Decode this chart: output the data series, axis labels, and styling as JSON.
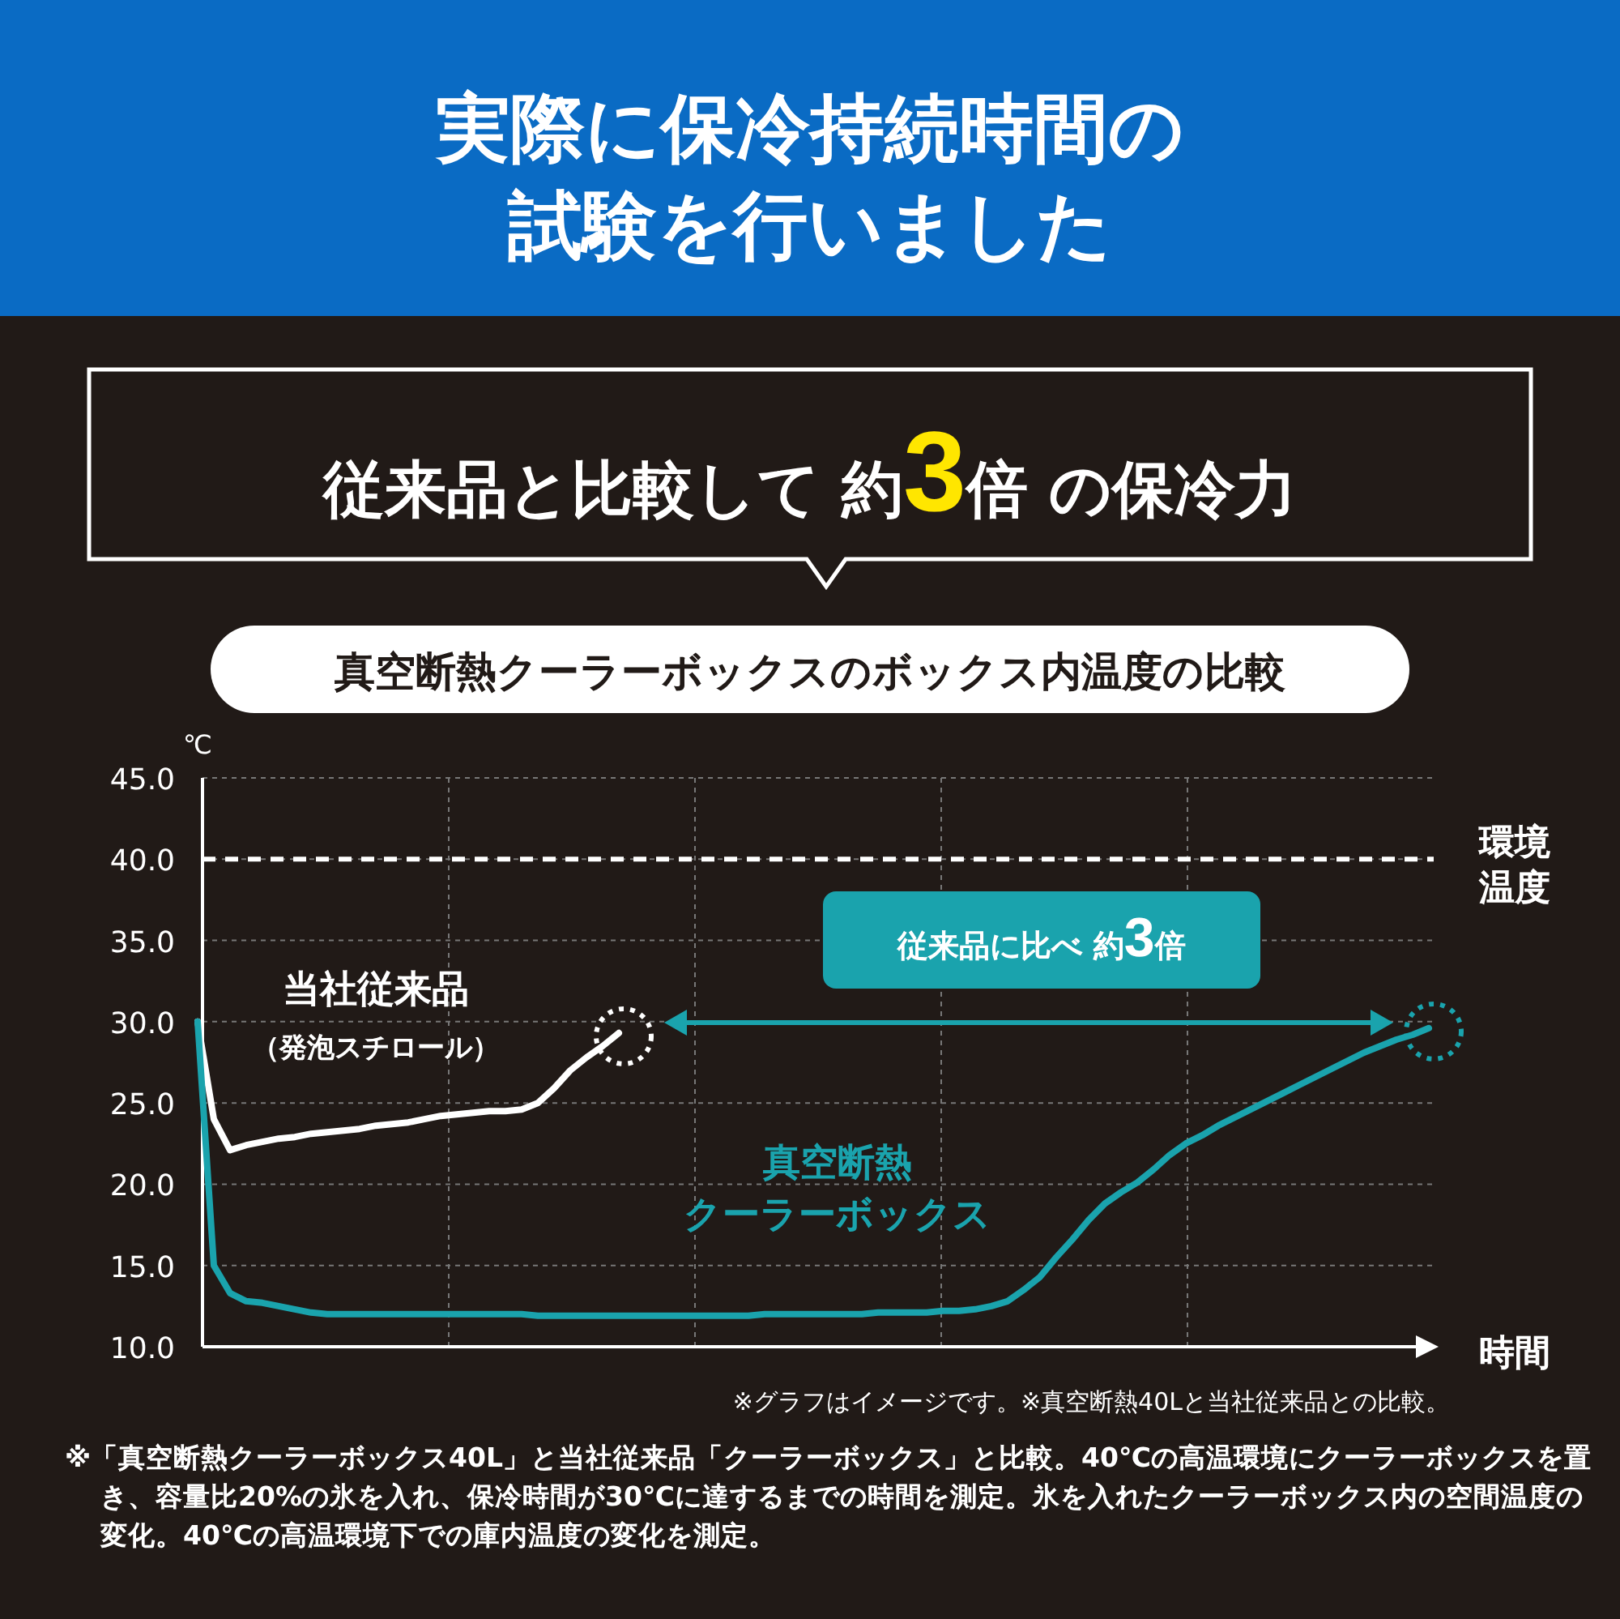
{
  "chart_data": {
    "type": "line",
    "title": "実際に保冷持続時間の試験を行いました",
    "subtitle": "従来品と比較して 約3倍 の保冷力",
    "ylabel": "℃",
    "xlabel": "時間",
    "categories": [
      null,
      null,
      null,
      null,
      null,
      null,
      null,
      null,
      null,
      null,
      null,
      null,
      null,
      null,
      null,
      null,
      null,
      null,
      null,
      null,
      null,
      null,
      null,
      null,
      null,
      null,
      null,
      null,
      null,
      null,
      null,
      null,
      null,
      null,
      null,
      null,
      null,
      null,
      null,
      null,
      null,
      null,
      null,
      null,
      null,
      null,
      null,
      null,
      null,
      null,
      null,
      null,
      null,
      null,
      null,
      null,
      null,
      null,
      null,
      null,
      null,
      null,
      null,
      null,
      null,
      null,
      null,
      null,
      null,
      null,
      null,
      null,
      null,
      null,
      null,
      null,
      null
    ],
    "series": [
      {
        "name": "当社従来品",
        "color": "#ffffff",
        "values": [
          30,
          24,
          22.1,
          22.4,
          22.6,
          22.8,
          22.9,
          23.1,
          23.2,
          23.3,
          23.4,
          23.6,
          23.7,
          23.8,
          24.0,
          24.2,
          24.3,
          24.4,
          24.5,
          24.5,
          24.6,
          25.0,
          25.9,
          27.0,
          27.8,
          28.5,
          29.3,
          null,
          null,
          null,
          null,
          null,
          null,
          null,
          null,
          null,
          null,
          null,
          null,
          null,
          null,
          null,
          null,
          null,
          null,
          null,
          null,
          null,
          null,
          null,
          null,
          null,
          null,
          null,
          null,
          null,
          null,
          null,
          null,
          null,
          null,
          null,
          null,
          null,
          null,
          null,
          null,
          null,
          null,
          null,
          null,
          null,
          null,
          null,
          null,
          null,
          null
        ]
      },
      {
        "name": "真空断熱クーラーボックス",
        "color": "#1aa3ad",
        "values": [
          30,
          15,
          13.3,
          12.8,
          12.7,
          12.5,
          12.3,
          12.1,
          12.0,
          12.0,
          12.0,
          12.0,
          12.0,
          12.0,
          12.0,
          12.0,
          12.0,
          12.0,
          12.0,
          12.0,
          12.0,
          11.9,
          11.9,
          11.9,
          11.9,
          11.9,
          11.9,
          11.9,
          11.9,
          11.9,
          11.9,
          11.9,
          11.9,
          11.9,
          11.9,
          12.0,
          12.0,
          12.0,
          12.0,
          12.0,
          12.0,
          12.0,
          12.1,
          12.1,
          12.1,
          12.1,
          12.2,
          12.2,
          12.3,
          12.5,
          12.8,
          13.5,
          14.3,
          15.5,
          16.6,
          17.8,
          18.8,
          19.5,
          20.1,
          20.9,
          21.8,
          22.5,
          23.0,
          23.6,
          24.1,
          24.6,
          25.1,
          25.6,
          26.1,
          26.6,
          27.1,
          27.6,
          28.1,
          28.5,
          28.9,
          29.2,
          29.6
        ]
      }
    ],
    "ylim": [
      10,
      45
    ],
    "yticks": [
      {
        "value": 10,
        "label": "10.0"
      },
      {
        "value": 15,
        "label": "15.0"
      },
      {
        "value": 20,
        "label": "20.0"
      },
      {
        "value": 25,
        "label": "25.0"
      },
      {
        "value": 30,
        "label": "30.0"
      },
      {
        "value": 35,
        "label": "35.0"
      },
      {
        "value": 40,
        "label": "40.0"
      },
      {
        "value": 45,
        "label": "45.0"
      }
    ],
    "tick_labels": "y",
    "grid": true,
    "ref_lines": [
      {
        "axis": "y",
        "value": 40,
        "label": "環境温度",
        "color": "#ffffff",
        "line_style": "dashed"
      }
    ],
    "annotations": [
      "真空断熱クーラーボックスのボックス内温度の比較",
      "従来品に比べ 約3倍",
      "（発泡スチロール）",
      "※グラフはイメージです。※真空断熱40Lと当社従来品との比較。",
      "※「真空断熱クーラーボックス40L」と当社従来品「クーラーボックス」と比較。40℃の高温環境にクーラーボックスを置き、容量比20%の氷を入れ、保冷時間が30℃に達するまでの時間を測定。氷を入れたクーラーボックス内の空間温度の変化。40℃の高温環境下での庫内温度の変化を測定。"
    ]
  }
}
